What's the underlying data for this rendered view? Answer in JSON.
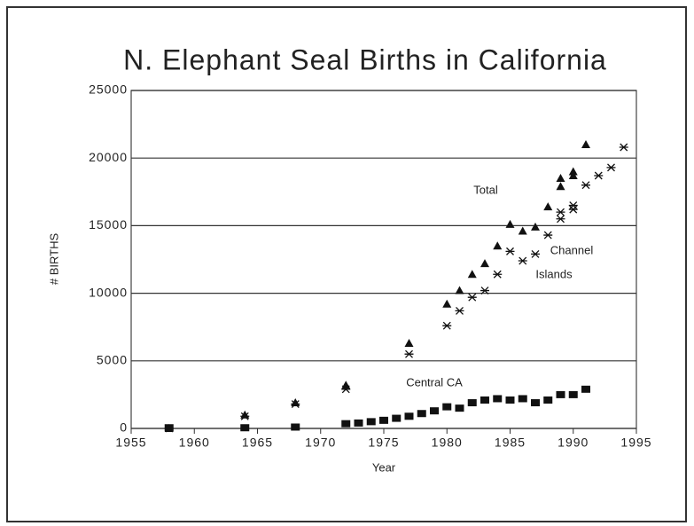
{
  "chart_data": {
    "type": "scatter",
    "title": "N. Elephant Seal Births in California",
    "x_label": "Year",
    "y_label": "# BIRTHS",
    "xlim": [
      1955,
      1995
    ],
    "xticks": [
      1955,
      1960,
      1965,
      1970,
      1975,
      1980,
      1985,
      1990,
      1995
    ],
    "ylim": [
      0,
      25000
    ],
    "yticks": [
      0,
      5000,
      10000,
      15000,
      20000,
      25000
    ],
    "grid": true,
    "annotations": [
      "Total",
      "Channel",
      "Islands",
      "Central CA"
    ],
    "series": [
      {
        "marker": "triangle",
        "color": "#111",
        "x": [
          1958,
          1964,
          1968,
          1972,
          1977,
          1980,
          1981,
          1982,
          1983,
          1984,
          1985,
          1986,
          1987,
          1988,
          1989,
          1989,
          1990,
          1990,
          1991
        ],
        "values": [
          0,
          1000,
          1900,
          3200,
          6300,
          9200,
          10200,
          11400,
          12200,
          13500,
          15100,
          14600,
          14900,
          16400,
          17900,
          18500,
          18700,
          19000,
          21000
        ]
      },
      {
        "marker": "asterisk",
        "color": "#111",
        "x": [
          1958,
          1964,
          1968,
          1972,
          1977,
          1980,
          1981,
          1982,
          1983,
          1984,
          1985,
          1986,
          1987,
          1988,
          1989,
          1989,
          1990,
          1990,
          1991,
          1992,
          1993,
          1994
        ],
        "values": [
          0,
          900,
          1800,
          2900,
          5500,
          7600,
          8700,
          9700,
          10200,
          11400,
          13100,
          12400,
          12900,
          14300,
          15500,
          16000,
          16200,
          16500,
          18000,
          18700,
          19300,
          20800
        ]
      },
      {
        "marker": "square",
        "color": "#111",
        "x": [
          1958,
          1964,
          1968,
          1972,
          1973,
          1974,
          1975,
          1976,
          1977,
          1978,
          1979,
          1980,
          1981,
          1982,
          1983,
          1984,
          1985,
          1986,
          1987,
          1988,
          1989,
          1990,
          1991
        ],
        "values": [
          50,
          50,
          100,
          350,
          400,
          500,
          600,
          750,
          900,
          1100,
          1300,
          1600,
          1500,
          1900,
          2100,
          2200,
          2100,
          2200,
          1900,
          2100,
          2500,
          2500,
          2900
        ]
      }
    ]
  }
}
